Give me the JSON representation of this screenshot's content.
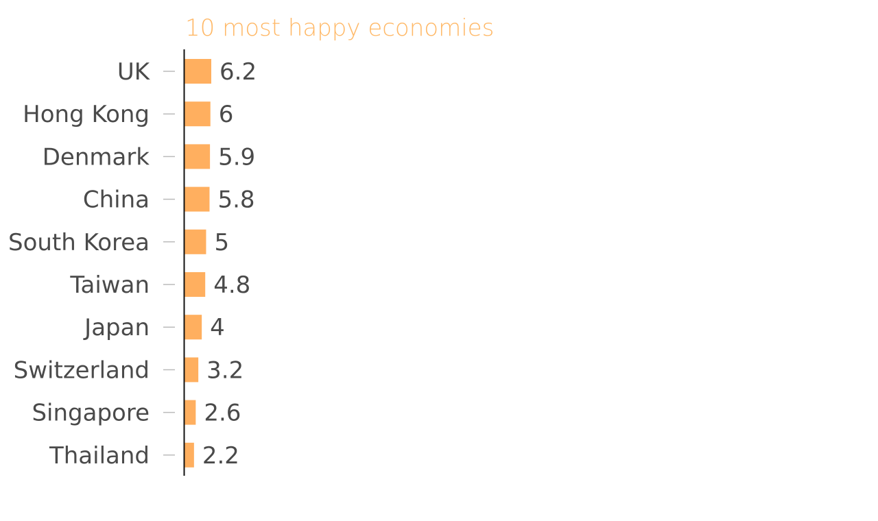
{
  "chart_data": {
    "type": "bar",
    "orientation": "horizontal",
    "title": "10 most happy economies",
    "categories": [
      "UK",
      "Hong Kong",
      "Denmark",
      "China",
      "South Korea",
      "Taiwan",
      "Japan",
      "Switzerland",
      "Singapore",
      "Thailand"
    ],
    "values": [
      6.2,
      6,
      5.9,
      5.8,
      5,
      4.8,
      4,
      3.2,
      2.6,
      2.2
    ],
    "value_labels": [
      "6.2",
      "6",
      "5.9",
      "5.8",
      "5",
      "4.8",
      "4",
      "3.2",
      "2.6",
      "2.2"
    ],
    "xlim": [
      0,
      6.2
    ],
    "grid": false,
    "legend": "none",
    "colors": {
      "bar": "#ffaf5f",
      "title": "#ffb866",
      "label": "#4a4a4a",
      "tick": "#bbbbbb",
      "axis": "#111111"
    }
  }
}
